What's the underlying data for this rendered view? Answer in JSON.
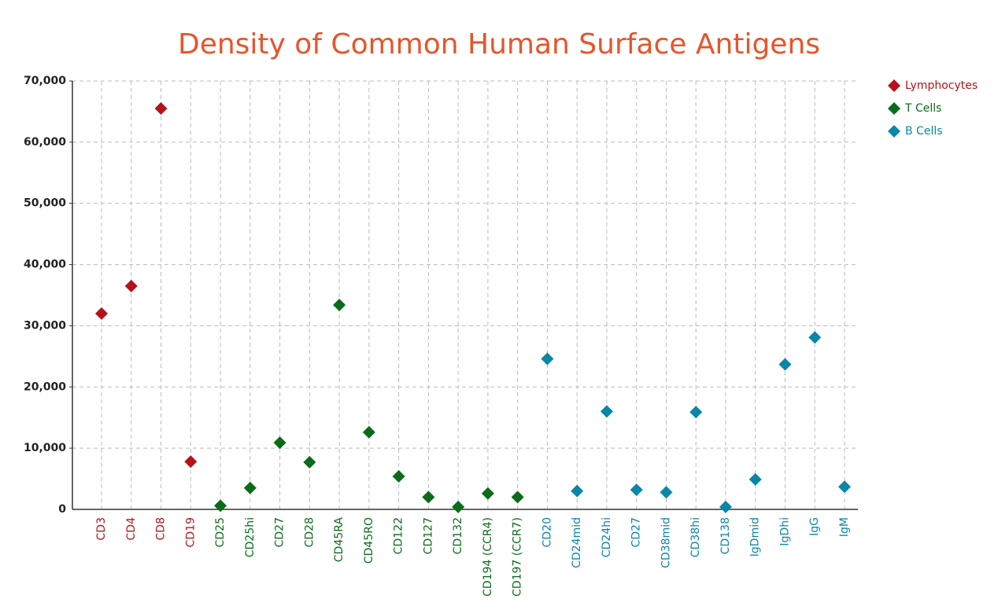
{
  "chart_data": {
    "type": "scatter",
    "title": "Density of Common Human Surface Antigens",
    "categories": [
      "CD3",
      "CD4",
      "CD8",
      "CD19",
      "CD25",
      "CD25hi",
      "CD27",
      "CD28",
      "CD45RA",
      "CD45RO",
      "CD122",
      "CD127",
      "CD132",
      "CD194 (CCR4)",
      "CD197 (CCR7)",
      "CD20",
      "CD24mid",
      "CD24hi",
      "CD27",
      "CD38mid",
      "CD38hi",
      "CD138",
      "IgDmid",
      "IgDhi",
      "IgG",
      "IgM"
    ],
    "series": [
      {
        "name": "Lymphocytes",
        "color": "#b5121b",
        "values": [
          32000,
          36500,
          65500,
          7800,
          null,
          null,
          null,
          null,
          null,
          null,
          null,
          null,
          null,
          null,
          null,
          null,
          null,
          null,
          null,
          null,
          null,
          null,
          null,
          null,
          null,
          null
        ]
      },
      {
        "name": "T Cells",
        "color": "#0b6b1a",
        "values": [
          null,
          null,
          null,
          null,
          600,
          3500,
          10900,
          7700,
          33400,
          12600,
          5400,
          2000,
          400,
          2600,
          2000,
          null,
          null,
          null,
          null,
          null,
          null,
          null,
          null,
          null,
          null,
          null
        ]
      },
      {
        "name": "B Cells",
        "color": "#0a86a8",
        "values": [
          null,
          null,
          null,
          null,
          null,
          null,
          null,
          null,
          null,
          null,
          null,
          null,
          null,
          null,
          null,
          24600,
          3000,
          16000,
          3200,
          2800,
          15900,
          400,
          4900,
          23700,
          28100,
          3700
        ]
      }
    ],
    "ylim": [
      0,
      70000
    ],
    "yticks": [
      0,
      {
        "value": 10000,
        "label": "10,000"
      },
      {
        "value": 20000,
        "label": "20,000"
      },
      {
        "value": 30000,
        "label": "30,000"
      },
      {
        "value": 40000,
        "label": "40,000"
      },
      {
        "value": 50000,
        "label": "50,000"
      },
      {
        "value": 60000,
        "label": "60,000"
      },
      {
        "value": 70000,
        "label": "70,000"
      }
    ],
    "grid": true,
    "legend": "top-right",
    "title_color": "#e8542a"
  }
}
